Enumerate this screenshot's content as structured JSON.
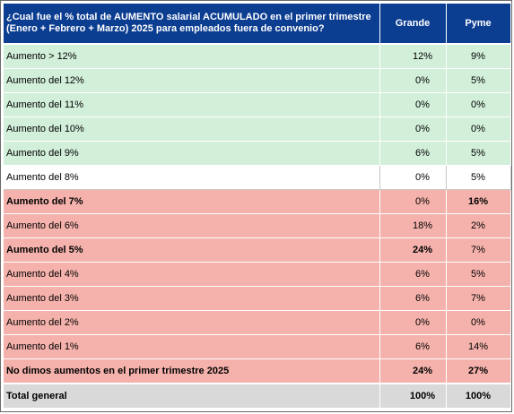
{
  "header": {
    "question": "¿Cual fue el % total de AUMENTO salarial ACUMULADO en el primer trimestre (Enero + Febrero + Marzo) 2025 para empleados fuera de convenio?",
    "col_grande": "Grande",
    "col_pyme": "Pyme"
  },
  "colors": {
    "header_bg": "#0b3d91",
    "green_rows": "#d2efd9",
    "red_rows": "#f5b2ac",
    "total_row": "#d9d9d9"
  },
  "rows": [
    {
      "label": "Aumento > 12%",
      "grande": "12%",
      "pyme": "9%"
    },
    {
      "label": "Aumento del 12%",
      "grande": "0%",
      "pyme": "5%"
    },
    {
      "label": "Aumento del 11%",
      "grande": "0%",
      "pyme": "0%"
    },
    {
      "label": "Aumento del 10%",
      "grande": "0%",
      "pyme": "0%"
    },
    {
      "label": "Aumento del 9%",
      "grande": "6%",
      "pyme": "5%"
    },
    {
      "label": "Aumento del 8%",
      "grande": "0%",
      "pyme": "5%"
    },
    {
      "label": "Aumento del 7%",
      "grande": "0%",
      "pyme": "16%"
    },
    {
      "label": "Aumento del 6%",
      "grande": "18%",
      "pyme": "2%"
    },
    {
      "label": "Aumento del 5%",
      "grande": "24%",
      "pyme": "7%"
    },
    {
      "label": "Aumento del 4%",
      "grande": "6%",
      "pyme": "5%"
    },
    {
      "label": "Aumento del 3%",
      "grande": "6%",
      "pyme": "7%"
    },
    {
      "label": "Aumento del 2%",
      "grande": "0%",
      "pyme": "0%"
    },
    {
      "label": "Aumento del 1%",
      "grande": "6%",
      "pyme": "14%"
    },
    {
      "label": "No dimos aumentos en el primer trimestre 2025",
      "grande": "24%",
      "pyme": "27%"
    }
  ],
  "total": {
    "label": "Total general",
    "grande": "100%",
    "pyme": "100%"
  }
}
